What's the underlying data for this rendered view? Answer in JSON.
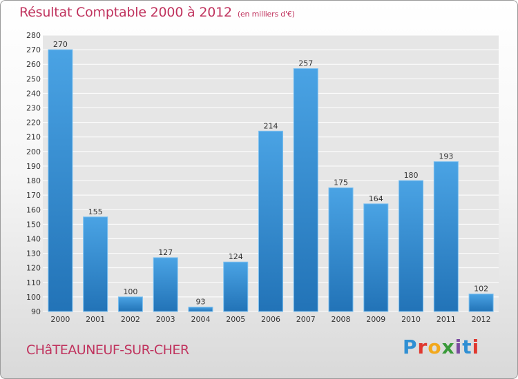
{
  "header": {
    "title": "Résultat Comptable 2000 à 2012",
    "subtitle": "(en milliers d'€)"
  },
  "footer": {
    "commune": "CHâTEAUNEUF-SUR-CHER",
    "logo_letters": [
      "P",
      "r",
      "o",
      "x",
      "i",
      "t",
      "i"
    ],
    "logo_colors": [
      "#2f8fd3",
      "#e0382f",
      "#f2a81c",
      "#3a9a3a",
      "#7a4ba0",
      "#2f8fd3",
      "#e0382f"
    ]
  },
  "chart_data": {
    "type": "bar",
    "categories": [
      "2000",
      "2001",
      "2002",
      "2003",
      "2004",
      "2005",
      "2006",
      "2007",
      "2008",
      "2009",
      "2010",
      "2011",
      "2012"
    ],
    "values": [
      270,
      155,
      100,
      127,
      93,
      124,
      214,
      257,
      175,
      164,
      180,
      193,
      102
    ],
    "title": "Résultat Comptable 2000 à 2012",
    "subtitle": "(en milliers d'€)",
    "ylim": [
      90,
      280
    ],
    "yticks": [
      90,
      100,
      110,
      120,
      130,
      140,
      150,
      160,
      170,
      180,
      190,
      200,
      210,
      220,
      230,
      240,
      250,
      260,
      270,
      280
    ],
    "grid": true,
    "bar_color": "#4aa3e4",
    "bar_color_dark": "#2273b7"
  }
}
